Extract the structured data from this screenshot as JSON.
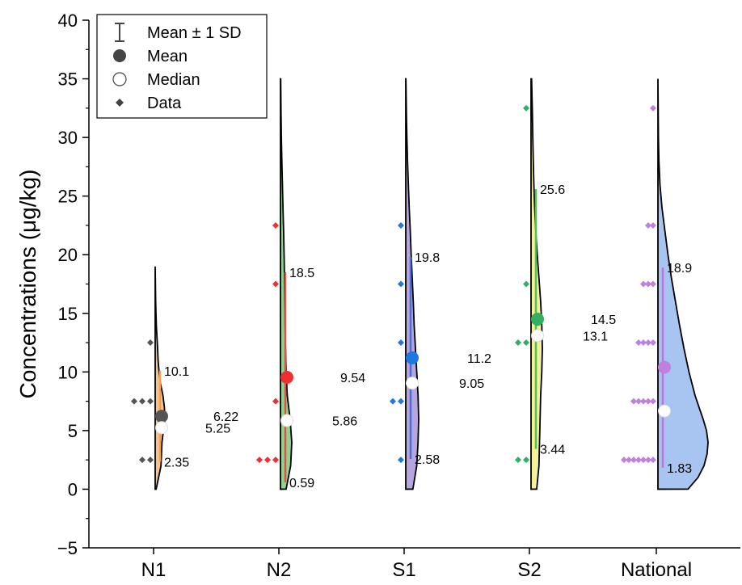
{
  "chart_data": {
    "type": "half-violin",
    "ylabel": "Concentrations (μg/kg)",
    "ylim": [
      -5,
      40
    ],
    "yticks": [
      -5,
      0,
      5,
      10,
      15,
      20,
      25,
      30,
      35,
      40
    ],
    "ytick_labels": [
      "−5",
      "0",
      "5",
      "10",
      "15",
      "20",
      "25",
      "30",
      "35",
      "40"
    ],
    "grid": false,
    "legend_position": "top-left",
    "legend": {
      "items": [
        {
          "label": "Mean ± 1 SD",
          "symbol": "errorbar"
        },
        {
          "label": "Mean",
          "symbol": "filled-circle"
        },
        {
          "label": "Median",
          "symbol": "open-circle"
        },
        {
          "label": "Data",
          "symbol": "diamond"
        }
      ]
    },
    "categories": [
      "N1",
      "N2",
      "S1",
      "S2",
      "National"
    ],
    "groups": [
      {
        "category": "N1",
        "fill": "#f5c28e",
        "line": "#f5a050",
        "point_color": "#555555",
        "mean_color": "#555555",
        "mean": 6.22,
        "median": 5.25,
        "sd_low": 2.35,
        "sd_high": 10.1,
        "labels": {
          "mean": "6.22",
          "median": "5.25",
          "sd_low": "2.35",
          "sd_high": "10.1"
        },
        "data": [
          2.5,
          2.5,
          7.5,
          7.5,
          7.5,
          12.5
        ],
        "violin_range": [
          0,
          19
        ],
        "density": [
          [
            0,
            0.1
          ],
          [
            1,
            0.35
          ],
          [
            2,
            0.6
          ],
          [
            3,
            0.65
          ],
          [
            4,
            0.7
          ],
          [
            5,
            0.85
          ],
          [
            6,
            1.0
          ],
          [
            7,
            0.95
          ],
          [
            8,
            0.8
          ],
          [
            9,
            0.55
          ],
          [
            10,
            0.4
          ],
          [
            11,
            0.3
          ],
          [
            12,
            0.25
          ],
          [
            13,
            0.18
          ],
          [
            14,
            0.12
          ],
          [
            15,
            0.08
          ],
          [
            16,
            0.05
          ],
          [
            17,
            0.03
          ],
          [
            19,
            0
          ]
        ],
        "violin_width": 12
      },
      {
        "category": "N2",
        "fill": "#8ed48e",
        "line": "#e05050",
        "point_color": "#ee3030",
        "mean_color": "#ee3030",
        "mean": 9.54,
        "median": 5.86,
        "sd_low": 0.59,
        "sd_high": 18.5,
        "labels": {
          "mean": "9.54",
          "median": "5.86",
          "sd_low": "0.59",
          "sd_high": "18.5"
        },
        "data": [
          2.5,
          2.5,
          2.5,
          7.5,
          17.5,
          22.5
        ],
        "violin_range": [
          0,
          35
        ],
        "density": [
          [
            0,
            0.5
          ],
          [
            2,
            0.9
          ],
          [
            4,
            1.0
          ],
          [
            6,
            0.85
          ],
          [
            8,
            0.6
          ],
          [
            10,
            0.5
          ],
          [
            12,
            0.45
          ],
          [
            14,
            0.4
          ],
          [
            16,
            0.38
          ],
          [
            18,
            0.36
          ],
          [
            20,
            0.32
          ],
          [
            22,
            0.28
          ],
          [
            24,
            0.22
          ],
          [
            26,
            0.17
          ],
          [
            28,
            0.12
          ],
          [
            30,
            0.08
          ],
          [
            32,
            0.05
          ],
          [
            35,
            0.02
          ]
        ],
        "violin_width": 14
      },
      {
        "category": "S1",
        "fill": "#b7a5e0",
        "line": "#4a6fd0",
        "point_color": "#1f77e0",
        "mean_color": "#1f77e0",
        "mean": 11.2,
        "median": 9.05,
        "sd_low": 2.58,
        "sd_high": 19.8,
        "labels": {
          "mean": "11.2",
          "median": "9.05",
          "sd_low": "2.58",
          "sd_high": "19.8"
        },
        "data": [
          2.5,
          7.5,
          7.5,
          12.5,
          17.5,
          22.5
        ],
        "violin_range": [
          0,
          35
        ],
        "density": [
          [
            0,
            0.55
          ],
          [
            2,
            0.85
          ],
          [
            4,
            0.95
          ],
          [
            6,
            1.0
          ],
          [
            8,
            0.95
          ],
          [
            10,
            0.85
          ],
          [
            12,
            0.75
          ],
          [
            14,
            0.65
          ],
          [
            16,
            0.58
          ],
          [
            18,
            0.5
          ],
          [
            20,
            0.42
          ],
          [
            22,
            0.35
          ],
          [
            24,
            0.27
          ],
          [
            26,
            0.2
          ],
          [
            28,
            0.14
          ],
          [
            30,
            0.09
          ],
          [
            32,
            0.05
          ],
          [
            35,
            0.01
          ]
        ],
        "violin_width": 16
      },
      {
        "category": "S2",
        "fill": "#f5f09a",
        "line": "#50c050",
        "point_color": "#30b060",
        "mean_color": "#30b060",
        "mean": 14.5,
        "median": 13.1,
        "sd_low": 3.44,
        "sd_high": 25.6,
        "labels": {
          "mean": "14.5",
          "median": "13.1",
          "sd_low": "3.44",
          "sd_high": "25.6"
        },
        "data": [
          2.5,
          2.5,
          12.5,
          12.5,
          17.5,
          32.5
        ],
        "violin_range": [
          0,
          35
        ],
        "density": [
          [
            0,
            0.5
          ],
          [
            2,
            0.7
          ],
          [
            4,
            0.75
          ],
          [
            6,
            0.8
          ],
          [
            8,
            0.85
          ],
          [
            10,
            0.95
          ],
          [
            12,
            1.0
          ],
          [
            14,
            0.95
          ],
          [
            16,
            0.85
          ],
          [
            18,
            0.7
          ],
          [
            20,
            0.55
          ],
          [
            22,
            0.42
          ],
          [
            24,
            0.32
          ],
          [
            26,
            0.25
          ],
          [
            28,
            0.2
          ],
          [
            30,
            0.16
          ],
          [
            32,
            0.12
          ],
          [
            35,
            0.05
          ]
        ],
        "violin_width": 14
      },
      {
        "category": "National",
        "fill": "#a8c4f0",
        "line": "#c070e0",
        "point_color": "#c080e0",
        "mean_color": "#c080e0",
        "mean": 10.4,
        "median": 6.67,
        "sd_low": 1.83,
        "sd_high": 18.9,
        "labels": {
          "mean": "10.4",
          "median": "6.67",
          "sd_low": "1.83",
          "sd_high": "18.9"
        },
        "data_rows": [
          {
            "y": 2.5,
            "count": 7
          },
          {
            "y": 7.5,
            "count": 5
          },
          {
            "y": 12.5,
            "count": 4
          },
          {
            "y": 17.5,
            "count": 3
          },
          {
            "y": 22.5,
            "count": 2
          },
          {
            "y": 32.5,
            "count": 1
          }
        ],
        "violin_range": [
          0,
          35
        ],
        "density": [
          [
            0,
            0.6
          ],
          [
            1,
            0.8
          ],
          [
            2,
            0.92
          ],
          [
            3,
            0.98
          ],
          [
            4,
            1.0
          ],
          [
            5,
            0.97
          ],
          [
            6,
            0.9
          ],
          [
            7,
            0.82
          ],
          [
            8,
            0.74
          ],
          [
            10,
            0.62
          ],
          [
            12,
            0.52
          ],
          [
            14,
            0.43
          ],
          [
            16,
            0.35
          ],
          [
            18,
            0.27
          ],
          [
            20,
            0.2
          ],
          [
            22,
            0.14
          ],
          [
            24,
            0.08
          ],
          [
            26,
            0.04
          ],
          [
            28,
            0.02
          ],
          [
            30,
            0.01
          ],
          [
            35,
            0
          ]
        ],
        "violin_width": 62
      }
    ]
  }
}
